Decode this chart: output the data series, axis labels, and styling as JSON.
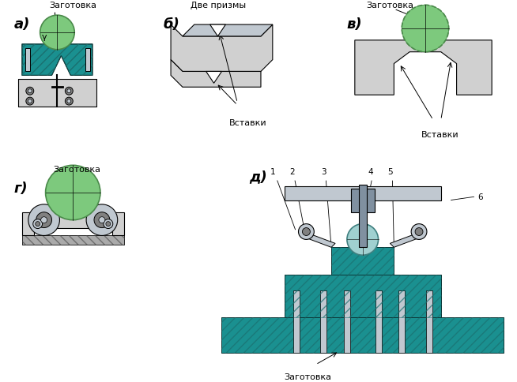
{
  "bg_color": "#f5f5f0",
  "labels": {
    "a": "а)",
    "b": "б)",
    "c": "в)",
    "g": "г)",
    "d": "д)",
    "zagotovka": "Заготовка",
    "dve_prizmy": "Две призмы",
    "vstavki": "Вставки",
    "gamma": "γ",
    "nums": [
      "1",
      "2",
      "3",
      "4",
      "5",
      "6"
    ]
  },
  "colors": {
    "teal": "#1a9090",
    "teal_hatch": "#2aabab",
    "green_circle": "#7dc97d",
    "green_circle_edge": "#4a8a4a",
    "gray_body": "#b0b0b0",
    "gray_light": "#d0d0d0",
    "gray_dark": "#808080",
    "white": "#ffffff",
    "black": "#000000",
    "steel": "#c0c8d0",
    "steel_dark": "#8090a0",
    "blue_teal": "#20a0a0",
    "hatch_color": "#1a7070"
  }
}
